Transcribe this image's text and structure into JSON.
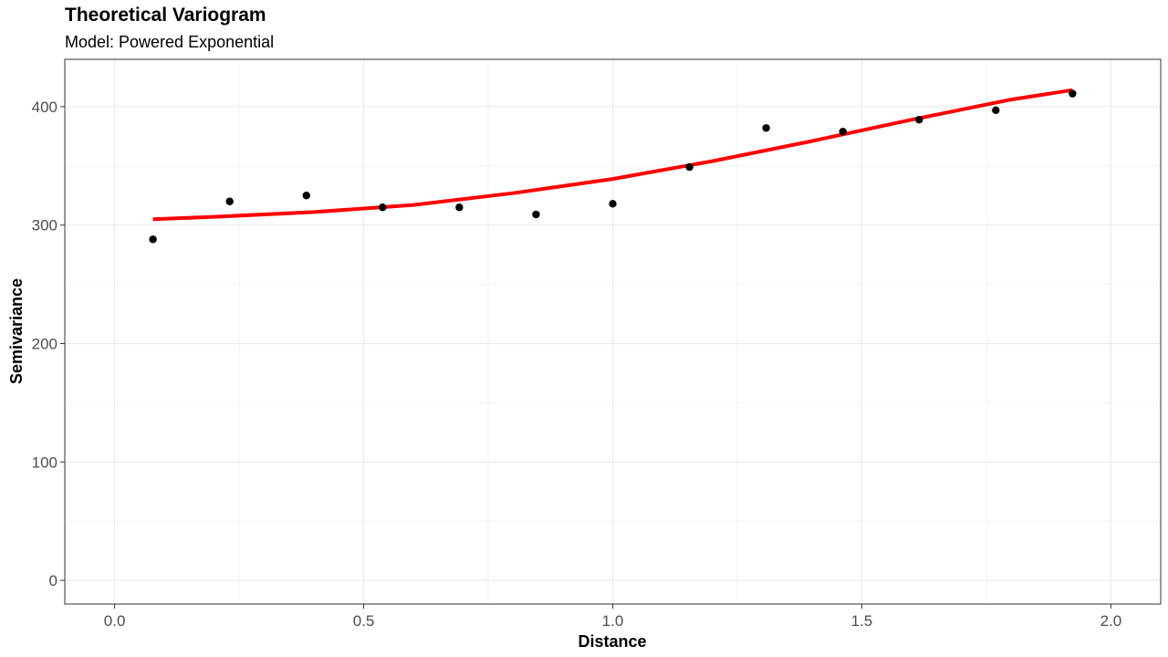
{
  "chart_data": {
    "type": "scatter",
    "title": "Theoretical Variogram",
    "subtitle": "Model: Powered Exponential",
    "xlabel": "Distance",
    "ylabel": "Semivariance",
    "xlim": [
      -0.1,
      2.1
    ],
    "ylim": [
      -20,
      440
    ],
    "x_ticks": [
      0.0,
      0.5,
      1.0,
      1.5,
      2.0
    ],
    "x_tick_labels": [
      "0.0",
      "0.5",
      "1.0",
      "1.5",
      "2.0"
    ],
    "y_ticks": [
      0,
      100,
      200,
      300,
      400
    ],
    "y_tick_labels": [
      "0",
      "100",
      "200",
      "300",
      "400"
    ],
    "grid": true,
    "series": [
      {
        "kind": "points",
        "color": "#000000",
        "x": [
          0.077,
          0.231,
          0.385,
          0.538,
          0.692,
          0.846,
          1.0,
          1.154,
          1.308,
          1.462,
          1.615,
          1.769,
          1.923
        ],
        "y": [
          288,
          320,
          325,
          315,
          315,
          309,
          318,
          349,
          382,
          379,
          389,
          397,
          411
        ]
      },
      {
        "kind": "line",
        "color": "#ff0000",
        "x": [
          0.077,
          0.2,
          0.4,
          0.6,
          0.8,
          1.0,
          1.2,
          1.4,
          1.6,
          1.8,
          1.923
        ],
        "y": [
          305,
          307,
          311,
          317,
          327,
          339,
          354,
          371,
          389,
          406,
          414
        ]
      }
    ]
  }
}
